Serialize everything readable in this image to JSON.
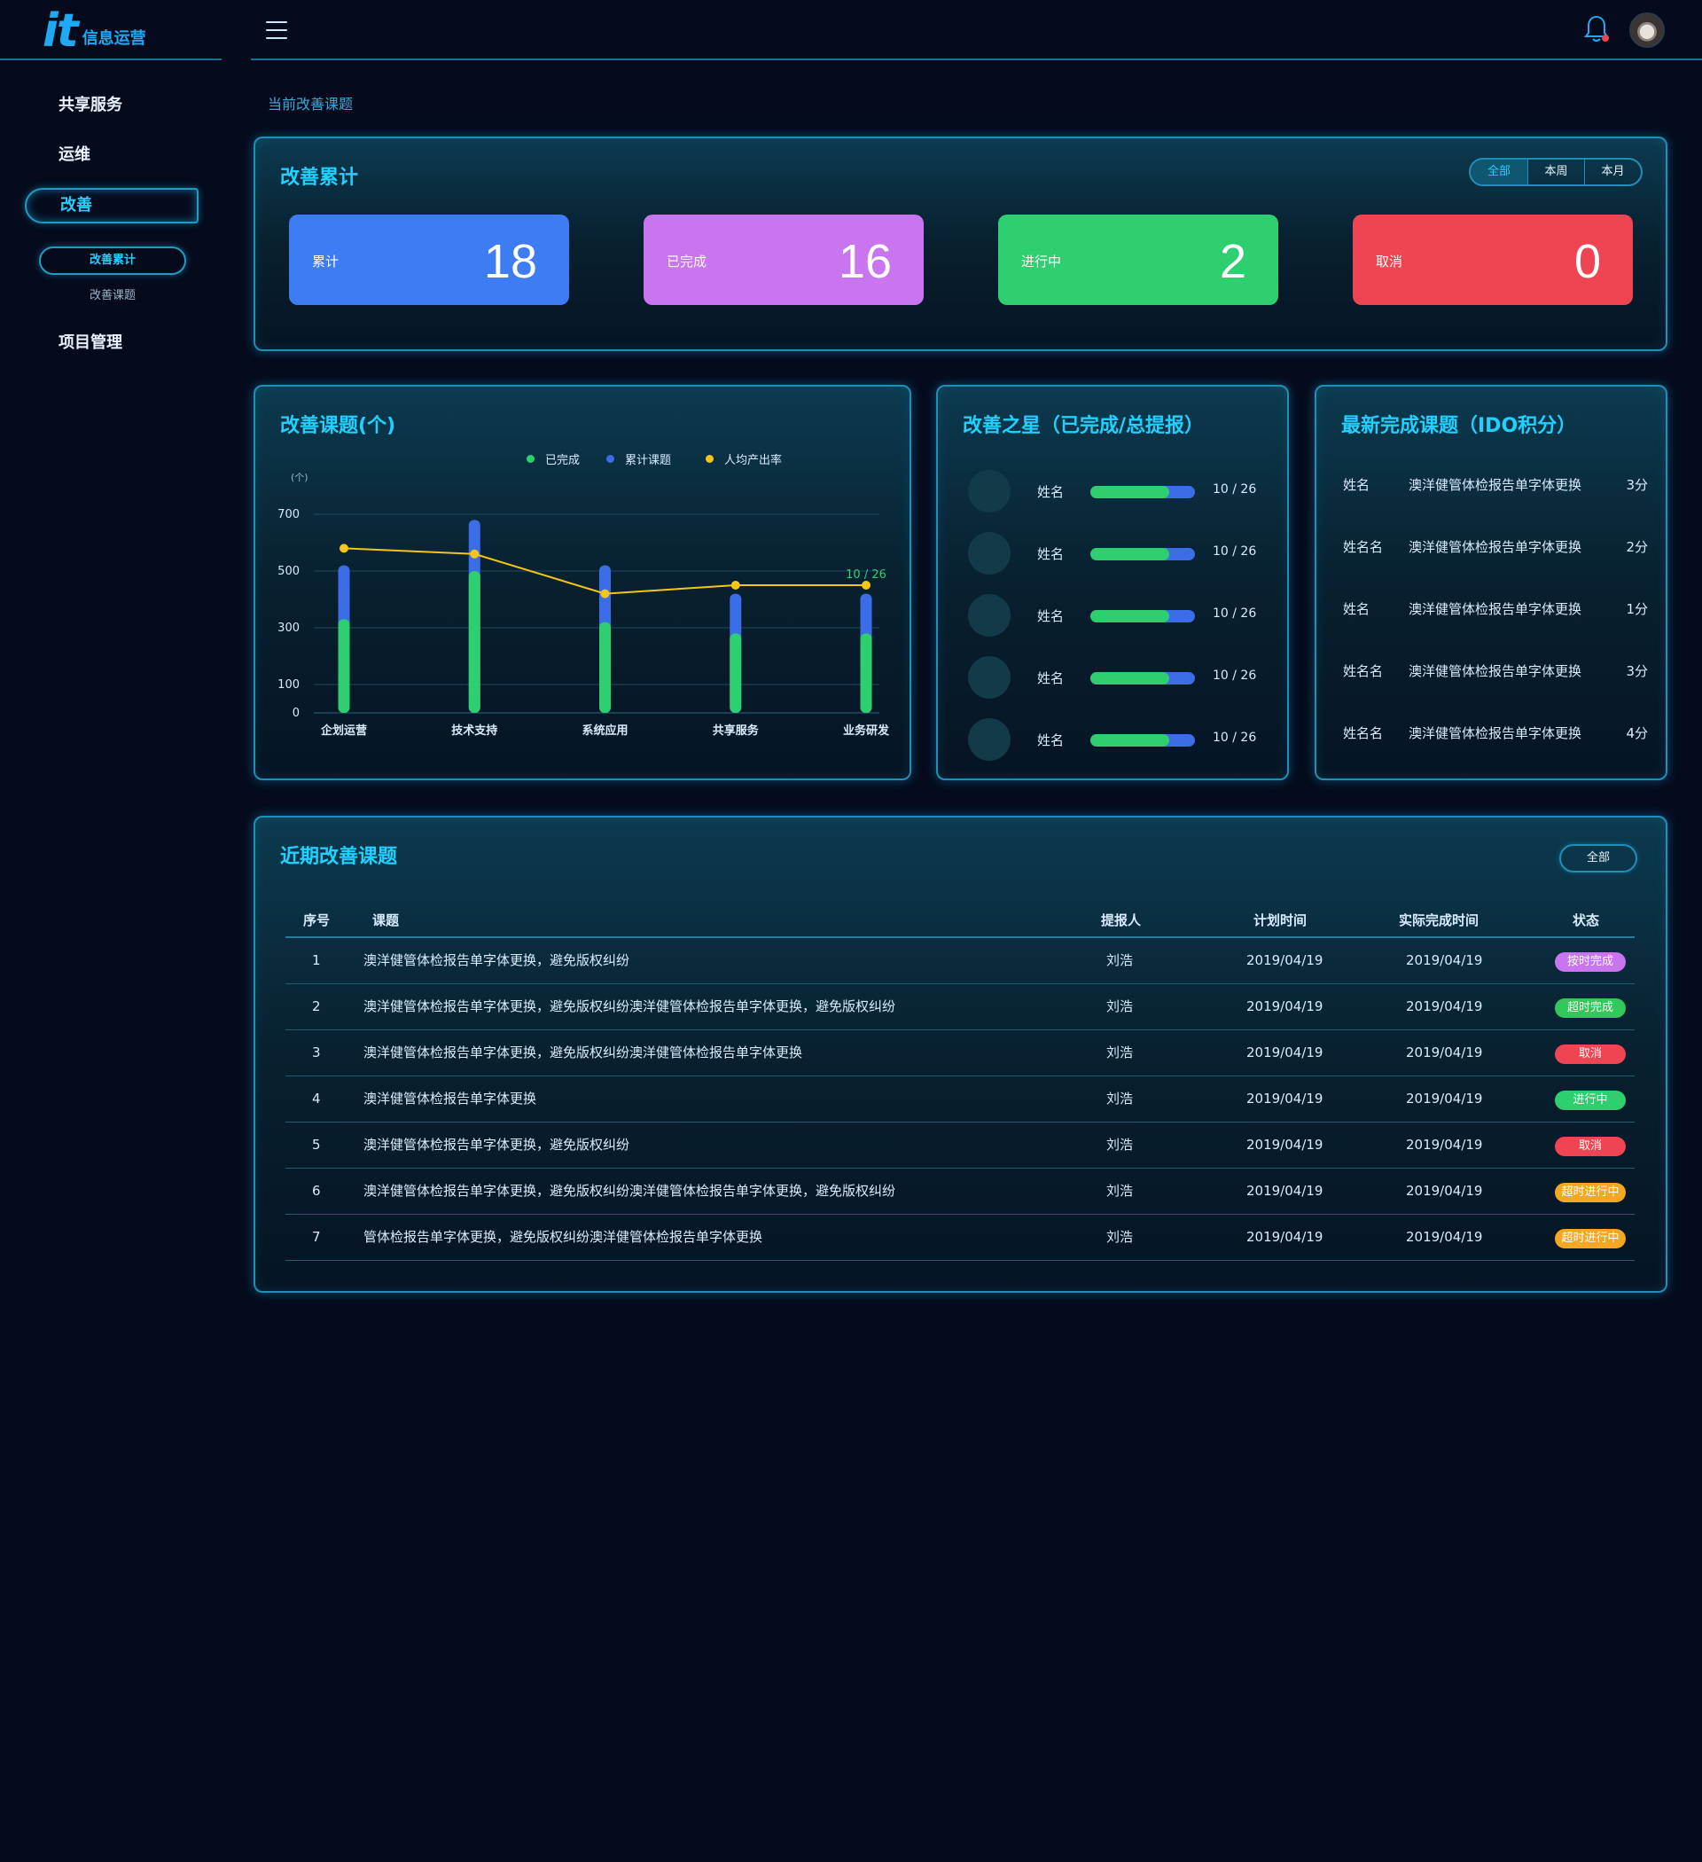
{
  "app": {
    "logo_mark": "it",
    "logo_text": "信息运营"
  },
  "colors": {
    "accent": "#21d0ff",
    "completed": "#2ecf6f",
    "total": "#3b6de6",
    "rate": "#f5c518",
    "blue_card": "#3d7cf2",
    "purple_card": "#c975f0",
    "green_card": "#2ecf6f",
    "red_card": "#ef4452"
  },
  "header": {
    "menu_icon": "hamburger-icon",
    "bell_icon": "bell-icon"
  },
  "sidebar": {
    "items": [
      {
        "label": "共享服务"
      },
      {
        "label": "运维"
      },
      {
        "label": "改善"
      },
      {
        "label": "项目管理"
      }
    ],
    "sub_items": [
      {
        "label": "改善累计"
      },
      {
        "label": "改善课题"
      }
    ]
  },
  "breadcrumb": "当前改善课题",
  "summary": {
    "title": "改善累计",
    "filters": [
      "全部",
      "本周",
      "本月"
    ],
    "cards": [
      {
        "label": "累计",
        "value": "18"
      },
      {
        "label": "已完成",
        "value": "16"
      },
      {
        "label": "进行中",
        "value": "2"
      },
      {
        "label": "取消",
        "value": "0"
      }
    ]
  },
  "chart_panel": {
    "title": "改善课题(个)",
    "legend": [
      "已完成",
      "累计课题",
      "人均产出率"
    ],
    "y_unit": "(个)",
    "tooltip": "10 / 26"
  },
  "chart_data": {
    "type": "bar",
    "categories": [
      "企划运营",
      "技术支持",
      "系统应用",
      "共享服务",
      "业务研发"
    ],
    "series": [
      {
        "name": "已完成",
        "values": [
          330,
          500,
          320,
          280,
          280
        ]
      },
      {
        "name": "累计课题",
        "values": [
          520,
          680,
          520,
          420,
          420
        ]
      },
      {
        "name": "人均产出率",
        "values": [
          580,
          560,
          420,
          450,
          450
        ]
      }
    ],
    "yticks": [
      0,
      100,
      300,
      500,
      700
    ],
    "ylim": [
      0,
      800
    ],
    "grid": true,
    "legend_position": "top-center"
  },
  "stars": {
    "title": "改善之星（已完成/总提报）",
    "rows": [
      {
        "name": "姓名",
        "score": "10 / 26",
        "ratio": 0.75
      },
      {
        "name": "姓名",
        "score": "10 / 26",
        "ratio": 0.75
      },
      {
        "name": "姓名",
        "score": "10 / 26",
        "ratio": 0.75
      },
      {
        "name": "姓名",
        "score": "10 / 26",
        "ratio": 0.75
      },
      {
        "name": "姓名",
        "score": "10 / 26",
        "ratio": 0.75
      }
    ]
  },
  "latest": {
    "title": "最新完成课题（IDO积分）",
    "rows": [
      {
        "name": "姓名",
        "topic": "澳洋健管体检报告单字体更换",
        "score": "3分"
      },
      {
        "name": "姓名名",
        "topic": "澳洋健管体检报告单字体更换",
        "score": "2分"
      },
      {
        "name": "姓名",
        "topic": "澳洋健管体检报告单字体更换",
        "score": "1分"
      },
      {
        "name": "姓名名",
        "topic": "澳洋健管体检报告单字体更换",
        "score": "3分"
      },
      {
        "name": "姓名名",
        "topic": "澳洋健管体检报告单字体更换",
        "score": "4分"
      }
    ]
  },
  "recent": {
    "title": "近期改善课题",
    "all_button": "全部",
    "columns": [
      "序号",
      "课题",
      "提报人",
      "计划时间",
      "实际完成时间",
      "状态"
    ],
    "rows": [
      {
        "no": "1",
        "topic": "澳洋健管体检报告单字体更换，避免版权纠纷",
        "person": "刘浩",
        "plan": "2019/04/19",
        "actual": "2019/04/19",
        "status": "按时完成",
        "status_color": "#c975f0"
      },
      {
        "no": "2",
        "topic": "澳洋健管体检报告单字体更换，避免版权纠纷澳洋健管体检报告单字体更换，避免版权纠纷",
        "person": "刘浩",
        "plan": "2019/04/19",
        "actual": "2019/04/19",
        "status": "超时完成",
        "status_color": "#34c759"
      },
      {
        "no": "3",
        "topic": "澳洋健管体检报告单字体更换，避免版权纠纷澳洋健管体检报告单字体更换",
        "person": "刘浩",
        "plan": "2019/04/19",
        "actual": "2019/04/19",
        "status": "取消",
        "status_color": "#ef4452"
      },
      {
        "no": "4",
        "topic": "澳洋健管体检报告单字体更换",
        "person": "刘浩",
        "plan": "2019/04/19",
        "actual": "2019/04/19",
        "status": "进行中",
        "status_color": "#2ecf6f"
      },
      {
        "no": "5",
        "topic": "澳洋健管体检报告单字体更换，避免版权纠纷",
        "person": "刘浩",
        "plan": "2019/04/19",
        "actual": "2019/04/19",
        "status": "取消",
        "status_color": "#ef4452"
      },
      {
        "no": "6",
        "topic": "澳洋健管体检报告单字体更换，避免版权纠纷澳洋健管体检报告单字体更换，避免版权纠纷",
        "person": "刘浩",
        "plan": "2019/04/19",
        "actual": "2019/04/19",
        "status": "超时进行中",
        "status_color": "#f5a623"
      },
      {
        "no": "7",
        "topic": "管体检报告单字体更换，避免版权纠纷澳洋健管体检报告单字体更换",
        "person": "刘浩",
        "plan": "2019/04/19",
        "actual": "2019/04/19",
        "status": "超时进行中",
        "status_color": "#f5a623"
      }
    ]
  }
}
